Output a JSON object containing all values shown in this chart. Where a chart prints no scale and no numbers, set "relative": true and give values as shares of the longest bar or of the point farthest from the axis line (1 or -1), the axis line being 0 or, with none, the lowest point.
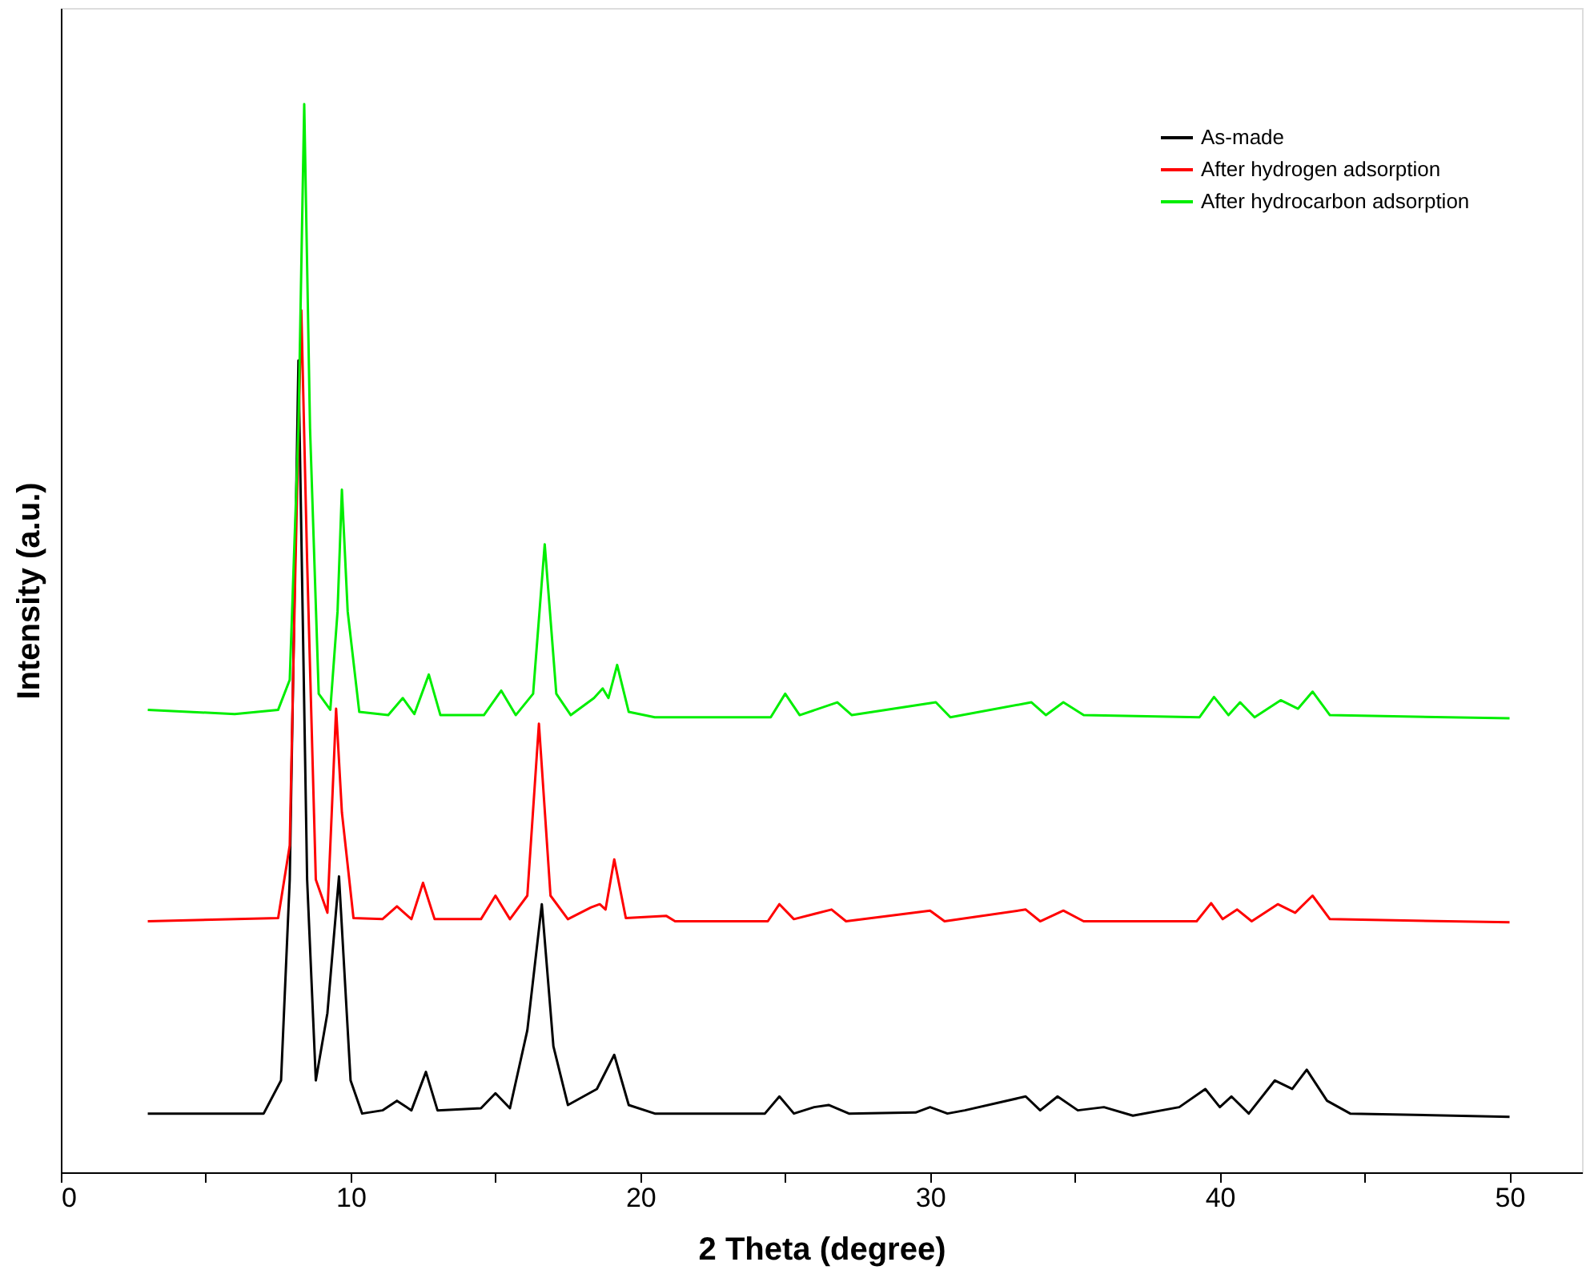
{
  "chart_data": {
    "type": "line",
    "relative": true,
    "xlabel": "2 Theta (degree)",
    "ylabel": "Intensity (a.u.)",
    "xlim": [
      0,
      52.5
    ],
    "xticks": [
      0,
      {
        "value": 5,
        "label": null
      },
      10,
      {
        "value": 15,
        "label": null
      },
      20,
      {
        "value": 25,
        "label": null
      },
      30,
      {
        "value": 35,
        "label": null
      },
      40,
      {
        "value": 45,
        "label": null
      },
      50
    ],
    "grid": false,
    "legend": "top right",
    "marker": "none",
    "line_style": "solid",
    "tick_labels": "x",
    "series": [
      {
        "name": "As-made",
        "color": "#000000",
        "x": [
          3,
          7,
          7.6,
          7.9,
          8.2,
          8.5,
          8.8,
          9.2,
          9.6,
          10,
          10.4,
          11.1,
          11.6,
          12.1,
          12.6,
          13,
          14.5,
          15,
          15.5,
          16.1,
          16.6,
          17,
          17.5,
          18.5,
          19.1,
          19.6,
          20.5,
          24.3,
          24.8,
          25.3,
          26,
          26.5,
          27.2,
          29.5,
          30,
          30.6,
          31.2,
          33.3,
          33.8,
          34.4,
          35.1,
          36,
          37,
          38.6,
          39.5,
          40,
          40.4,
          41,
          41.9,
          42.5,
          43,
          43.7,
          44.5,
          50
        ],
        "values": [
          0.055,
          0.055,
          0.086,
          0.274,
          0.76,
          0.274,
          0.086,
          0.149,
          0.277,
          0.086,
          0.055,
          0.058,
          0.067,
          0.058,
          0.094,
          0.058,
          0.06,
          0.074,
          0.06,
          0.133,
          0.251,
          0.118,
          0.063,
          0.078,
          0.11,
          0.063,
          0.055,
          0.055,
          0.071,
          0.055,
          0.061,
          0.063,
          0.055,
          0.056,
          0.061,
          0.055,
          0.058,
          0.071,
          0.058,
          0.071,
          0.058,
          0.061,
          0.053,
          0.061,
          0.078,
          0.061,
          0.071,
          0.055,
          0.086,
          0.078,
          0.096,
          0.067,
          0.055,
          0.052
        ]
      },
      {
        "name": "After hydrogen adsorption",
        "color": "#ff0000",
        "x": [
          3,
          7.5,
          7.9,
          8.1,
          8.3,
          8.5,
          8.8,
          9.2,
          9.35,
          9.5,
          9.7,
          10.1,
          11.1,
          11.6,
          12.1,
          12.5,
          12.9,
          14.5,
          15,
          15.5,
          16.1,
          16.5,
          16.9,
          17.5,
          18.3,
          18.6,
          18.8,
          19.1,
          19.5,
          20.9,
          21.2,
          24.4,
          24.8,
          25.3,
          26.6,
          27.1,
          30,
          30.5,
          33.3,
          33.8,
          34.6,
          35.3,
          39.2,
          39.7,
          40.1,
          40.6,
          41.1,
          42,
          42.6,
          43.2,
          43.8,
          50
        ],
        "values": [
          0.235,
          0.238,
          0.306,
          0.572,
          0.807,
          0.572,
          0.274,
          0.243,
          0.337,
          0.434,
          0.337,
          0.238,
          0.237,
          0.249,
          0.237,
          0.271,
          0.237,
          0.237,
          0.259,
          0.237,
          0.259,
          0.42,
          0.259,
          0.237,
          0.248,
          0.251,
          0.246,
          0.293,
          0.238,
          0.24,
          0.235,
          0.235,
          0.251,
          0.237,
          0.246,
          0.235,
          0.245,
          0.235,
          0.246,
          0.235,
          0.245,
          0.235,
          0.235,
          0.252,
          0.237,
          0.246,
          0.235,
          0.251,
          0.243,
          0.259,
          0.237,
          0.234
        ]
      },
      {
        "name": "After hydrocarbon adsorption",
        "color": "#00ee00",
        "x": [
          3,
          6,
          7.5,
          7.9,
          8.2,
          8.4,
          8.6,
          8.9,
          9.3,
          9.55,
          9.7,
          9.9,
          10.3,
          11.3,
          11.8,
          12.2,
          12.7,
          13.1,
          14.6,
          15.2,
          15.7,
          16.3,
          16.7,
          17.1,
          17.6,
          18.4,
          18.7,
          18.9,
          19.2,
          19.6,
          20.5,
          24.5,
          25,
          25.5,
          26.8,
          27.3,
          30.2,
          30.7,
          33.5,
          34,
          34.6,
          35.3,
          39.3,
          39.8,
          40.3,
          40.7,
          41.2,
          42.1,
          42.7,
          43.2,
          43.8,
          50
        ],
        "values": [
          0.433,
          0.429,
          0.433,
          0.461,
          0.697,
          1.0,
          0.697,
          0.448,
          0.433,
          0.525,
          0.639,
          0.525,
          0.431,
          0.428,
          0.444,
          0.429,
          0.466,
          0.428,
          0.428,
          0.451,
          0.428,
          0.448,
          0.588,
          0.448,
          0.428,
          0.444,
          0.453,
          0.444,
          0.475,
          0.431,
          0.426,
          0.426,
          0.448,
          0.428,
          0.44,
          0.428,
          0.44,
          0.426,
          0.44,
          0.428,
          0.44,
          0.428,
          0.426,
          0.445,
          0.428,
          0.44,
          0.426,
          0.442,
          0.434,
          0.45,
          0.428,
          0.425
        ]
      }
    ]
  }
}
